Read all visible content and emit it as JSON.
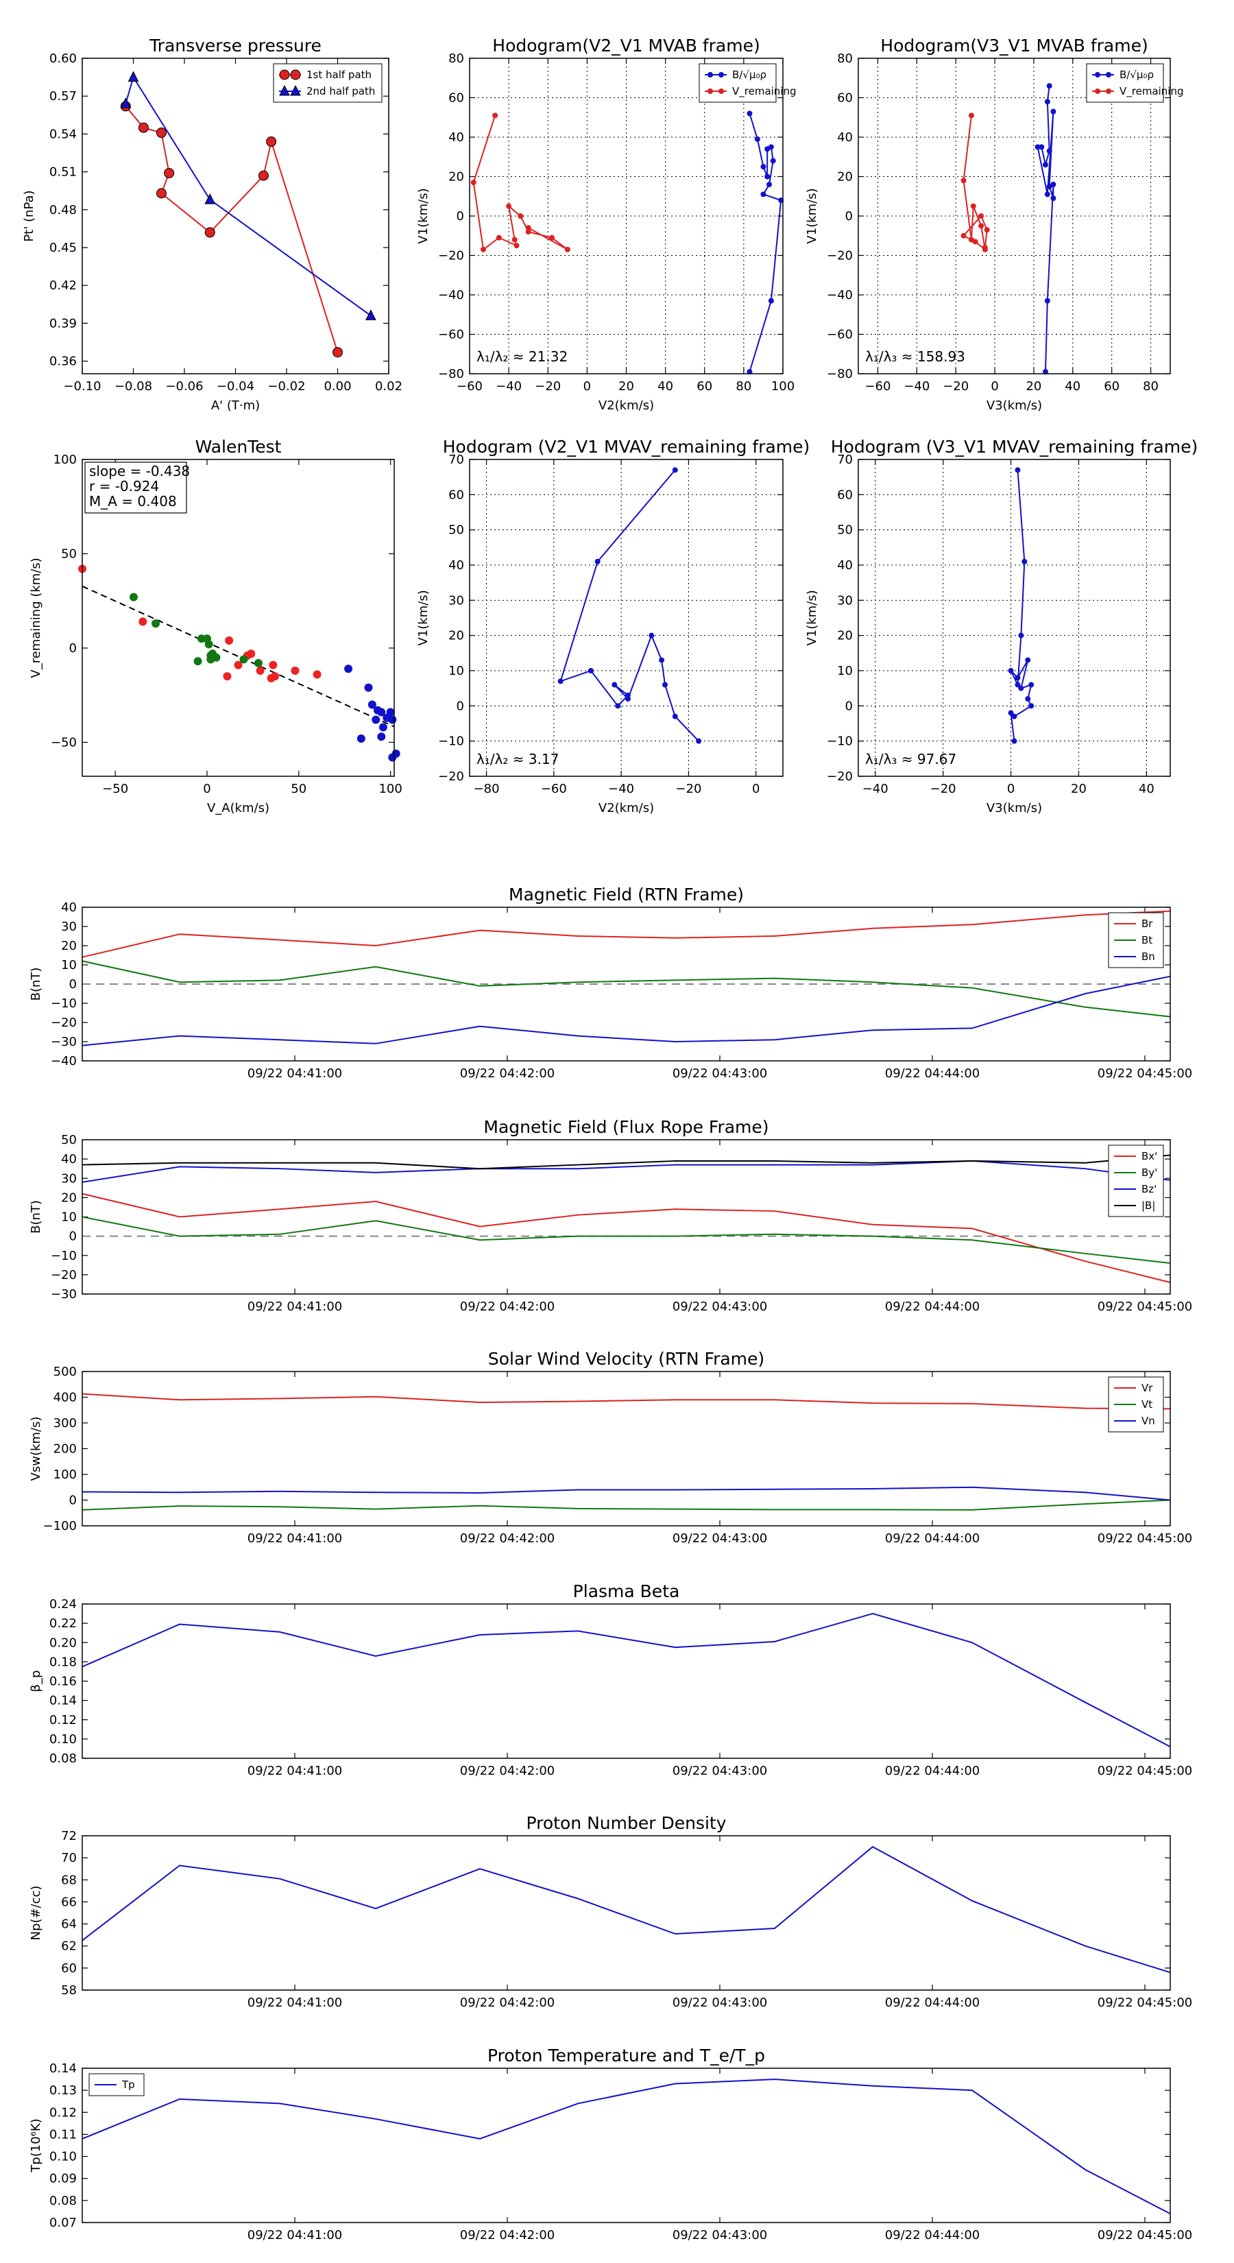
{
  "chart_data": [
    {
      "id": "p1",
      "type": "line",
      "title": "Transverse pressure",
      "xlabel": "A' (T·m)",
      "ylabel": "Pt' (nPa)",
      "xlim": [
        -0.1,
        0.02
      ],
      "ylim": [
        0.35,
        0.6
      ],
      "xticks": [
        -0.1,
        -0.08,
        -0.06,
        -0.04,
        -0.02,
        0.0,
        0.02
      ],
      "xtick_labels": [
        "−0.10",
        "−0.08",
        "−0.06",
        "−0.04",
        "−0.02",
        "0.00",
        "0.02"
      ],
      "yticks": [
        0.36,
        0.39,
        0.42,
        0.45,
        0.48,
        0.51,
        0.54,
        0.57,
        0.6
      ],
      "ytick_labels": [
        "0.36",
        "0.39",
        "0.42",
        "0.45",
        "0.48",
        "0.51",
        "0.54",
        "0.57",
        "0.60"
      ],
      "grid": false,
      "legend": {
        "position": "top-right"
      },
      "series": [
        {
          "name": "1st half path",
          "color": "#dd2222",
          "marker": "circle",
          "x": [
            -0.083,
            -0.076,
            -0.069,
            -0.066,
            -0.069,
            -0.05,
            -0.029,
            -0.026,
            0.0
          ],
          "y": [
            0.562,
            0.545,
            0.541,
            0.509,
            0.493,
            0.462,
            0.507,
            0.534,
            0.367
          ]
        },
        {
          "name": "2nd half path",
          "color": "#1111cc",
          "marker": "triangle",
          "x": [
            -0.083,
            -0.08,
            -0.05,
            0.013
          ],
          "y": [
            0.564,
            0.585,
            0.488,
            0.396
          ]
        }
      ]
    },
    {
      "id": "p2",
      "type": "line",
      "title": "Hodogram(V2_V1 MVAB frame)",
      "xlabel": "V2(km/s)",
      "ylabel": "V1(km/s)",
      "xlim": [
        -60,
        100
      ],
      "ylim": [
        -80,
        80
      ],
      "xticks": [
        -60,
        -40,
        -20,
        0,
        20,
        40,
        60,
        80,
        100
      ],
      "xtick_labels": [
        "−60",
        "−40",
        "−20",
        "0",
        "20",
        "40",
        "60",
        "80",
        "100"
      ],
      "yticks": [
        -80,
        -60,
        -40,
        -20,
        0,
        20,
        40,
        60,
        80
      ],
      "ytick_labels": [
        "−80",
        "−60",
        "−40",
        "−20",
        "0",
        "20",
        "40",
        "60",
        "80"
      ],
      "grid": true,
      "legend": {
        "position": "top-right"
      },
      "annotation": "λ₁/λ₂ ≈ 21.32",
      "series": [
        {
          "name": "B/√μ₀ρ",
          "color": "#1111cc",
          "marker": "dot",
          "x": [
            83,
            87,
            90,
            92,
            92,
            94,
            95,
            93,
            90,
            99,
            94,
            83
          ],
          "y": [
            52,
            39,
            25,
            20,
            34,
            35,
            28,
            16,
            11,
            8,
            -43,
            -79
          ]
        },
        {
          "name": "V_remaining",
          "color": "#dd2222",
          "marker": "dot",
          "x": [
            -47,
            -58,
            -53,
            -45,
            -36,
            -37,
            -40,
            -34,
            -30,
            -18,
            -10,
            -30
          ],
          "y": [
            51,
            17,
            -17,
            -11,
            -15,
            -12,
            5,
            0,
            -8,
            -11,
            -17,
            -6
          ]
        }
      ]
    },
    {
      "id": "p3",
      "type": "line",
      "title": "Hodogram(V3_V1 MVAB frame)",
      "xlabel": "V3(km/s)",
      "ylabel": "V1(km/s)",
      "xlim": [
        -70,
        90
      ],
      "ylim": [
        -80,
        80
      ],
      "xticks": [
        -60,
        -40,
        -20,
        0,
        20,
        40,
        60,
        80
      ],
      "xtick_labels": [
        "−60",
        "−40",
        "−20",
        "0",
        "20",
        "40",
        "60",
        "80"
      ],
      "yticks": [
        -80,
        -60,
        -40,
        -20,
        0,
        20,
        40,
        60,
        80
      ],
      "ytick_labels": [
        "−80",
        "−60",
        "−40",
        "−20",
        "0",
        "20",
        "40",
        "60",
        "80"
      ],
      "grid": true,
      "legend": {
        "position": "top-right"
      },
      "annotation": "λ₁/λ₃ ≈ 158.93",
      "series": [
        {
          "name": "B/√μ₀ρ",
          "color": "#1111cc",
          "marker": "dot",
          "x": [
            28,
            27,
            28,
            26,
            24,
            22,
            27,
            30,
            28,
            30,
            30,
            27,
            26
          ],
          "y": [
            66,
            58,
            33,
            26,
            35,
            35,
            11,
            53,
            15,
            9,
            16,
            -43,
            -79
          ]
        },
        {
          "name": "V_remaining",
          "color": "#dd2222",
          "marker": "dot",
          "x": [
            -12,
            -16,
            -12,
            -11,
            -7,
            -5,
            -10,
            -16,
            -7,
            -4,
            -5
          ],
          "y": [
            51,
            18,
            -12,
            5,
            -5,
            -17,
            -13,
            -10,
            0,
            -7,
            -16
          ]
        }
      ]
    },
    {
      "id": "p4",
      "type": "scatter",
      "title": "WalenTest",
      "xlabel": "V_A(km/s)",
      "ylabel": "V_remaining (km/s)",
      "xlim": [
        -68,
        102
      ],
      "ylim": [
        -68,
        100
      ],
      "xticks": [
        -50,
        0,
        50,
        100
      ],
      "xtick_labels": [
        "−50",
        "0",
        "50",
        "100"
      ],
      "yticks": [
        -50,
        0,
        50,
        100
      ],
      "ytick_labels": [
        "−50",
        "0",
        "50",
        "100"
      ],
      "grid": false,
      "stats": [
        "slope = -0.438",
        "r = -0.924",
        "M_A = 0.408"
      ],
      "fit_line": {
        "slope": -0.438,
        "intercept": 3.0,
        "color": "#000000",
        "style": "dashed"
      },
      "series": [
        {
          "name": "red",
          "color": "#ee2222",
          "x": [
            -68,
            -35,
            12,
            11,
            17,
            22,
            24,
            29,
            35,
            37,
            36,
            48,
            60
          ],
          "y": [
            42,
            14,
            4,
            -15,
            -9,
            -4,
            -3,
            -12,
            -16,
            -15,
            -9,
            -12,
            -14
          ]
        },
        {
          "name": "green",
          "color": "#117711",
          "x": [
            -40,
            -28,
            -5,
            -3,
            0,
            1,
            2,
            2,
            3,
            5,
            20,
            28
          ],
          "y": [
            27,
            13,
            -7,
            5,
            5,
            2,
            -4,
            -6,
            -3,
            -5,
            -6,
            -8
          ]
        },
        {
          "name": "blue",
          "color": "#1111cc",
          "x": [
            77,
            84,
            88,
            90,
            93,
            92,
            95,
            96,
            98,
            100,
            101,
            101,
            103,
            95
          ],
          "y": [
            -11,
            -48,
            -21,
            -30,
            -33,
            -38,
            -34,
            -42,
            -37,
            -34,
            -38,
            -58,
            -56,
            -47
          ]
        }
      ]
    },
    {
      "id": "p5",
      "type": "line",
      "title": "Hodogram (V2_V1 MVAV_remaining frame)",
      "xlabel": "V2(km/s)",
      "ylabel": "V1(km/s)",
      "xlim": [
        -85,
        8
      ],
      "ylim": [
        -20,
        70
      ],
      "xticks": [
        -80,
        -60,
        -40,
        -20,
        0
      ],
      "xtick_labels": [
        "−80",
        "−60",
        "−40",
        "−20",
        "0"
      ],
      "yticks": [
        -20,
        -10,
        0,
        10,
        20,
        30,
        40,
        50,
        60,
        70
      ],
      "ytick_labels": [
        "−20",
        "−10",
        "0",
        "10",
        "20",
        "30",
        "40",
        "50",
        "60",
        "70"
      ],
      "grid": true,
      "annotation": "λ₁/λ₂ ≈ 3.17",
      "series": [
        {
          "name": "hodogram",
          "color": "#1111cc",
          "marker": "dot",
          "x": [
            -24,
            -47,
            -58,
            -49,
            -41,
            -38,
            -42,
            -38,
            -31,
            -28,
            -27,
            -24,
            -17
          ],
          "y": [
            67,
            41,
            7,
            10,
            0,
            3,
            6,
            2,
            20,
            13,
            6,
            -3,
            -10
          ]
        }
      ]
    },
    {
      "id": "p6",
      "type": "line",
      "title": "Hodogram (V3_V1 MVAV_remaining frame)",
      "xlabel": "V3(km/s)",
      "ylabel": "V1(km/s)",
      "xlim": [
        -45,
        47
      ],
      "ylim": [
        -20,
        70
      ],
      "xticks": [
        -40,
        -20,
        0,
        20,
        40
      ],
      "xtick_labels": [
        "−40",
        "−20",
        "0",
        "20",
        "40"
      ],
      "yticks": [
        -20,
        -10,
        0,
        10,
        20,
        30,
        40,
        50,
        60,
        70
      ],
      "ytick_labels": [
        "−20",
        "−10",
        "0",
        "10",
        "20",
        "30",
        "40",
        "50",
        "60",
        "70"
      ],
      "grid": true,
      "annotation": "λ₁/λ₃ ≈ 97.67",
      "series": [
        {
          "name": "hodogram",
          "color": "#1111cc",
          "marker": "dot",
          "x": [
            2,
            4,
            3,
            2,
            0,
            2,
            5,
            3,
            6,
            5,
            6,
            1,
            0,
            1
          ],
          "y": [
            67,
            41,
            20,
            6,
            10,
            8,
            13,
            5,
            6,
            2,
            0,
            -3,
            -2,
            -10
          ]
        }
      ]
    },
    {
      "id": "ts1",
      "type": "line",
      "title": "Magnetic Field (RTN Frame)",
      "ylabel": "B(nT)",
      "ylim": [
        -40,
        40
      ],
      "yticks": [
        -40,
        -30,
        -20,
        -10,
        0,
        10,
        20,
        30,
        40
      ],
      "ytick_labels": [
        "−40",
        "−30",
        "−20",
        "−10",
        "0",
        "10",
        "20",
        "30",
        "40"
      ],
      "x_labels": [
        "09/22 04:41:00",
        "09/22 04:42:00",
        "09/22 04:43:00",
        "09/22 04:44:00",
        "09/22 04:45:00"
      ],
      "zero_line": true,
      "legend": {
        "position": "top-right"
      },
      "series": [
        {
          "name": "Br",
          "color": "#dd2222",
          "values": [
            14,
            26,
            23,
            20,
            28,
            25,
            24,
            25,
            29,
            31,
            36,
            38
          ]
        },
        {
          "name": "Bt",
          "color": "#117711",
          "values": [
            12,
            1,
            2,
            9,
            -1,
            1,
            2,
            3,
            1,
            -2,
            -12,
            -17
          ]
        },
        {
          "name": "Bn",
          "color": "#1111cc",
          "values": [
            -32,
            -27,
            -29,
            -31,
            -22,
            -27,
            -30,
            -29,
            -24,
            -23,
            -5,
            4
          ]
        }
      ]
    },
    {
      "id": "ts2",
      "type": "line",
      "title": "Magnetic Field (Flux Rope Frame)",
      "ylabel": "B(nT)",
      "ylim": [
        -30,
        50
      ],
      "yticks": [
        -30,
        -20,
        -10,
        0,
        10,
        20,
        30,
        40,
        50
      ],
      "ytick_labels": [
        "−30",
        "−20",
        "−10",
        "0",
        "10",
        "20",
        "30",
        "40",
        "50"
      ],
      "x_labels": [
        "09/22 04:41:00",
        "09/22 04:42:00",
        "09/22 04:43:00",
        "09/22 04:44:00",
        "09/22 04:45:00"
      ],
      "zero_line": true,
      "legend": {
        "position": "top-right"
      },
      "series": [
        {
          "name": "Bx'",
          "color": "#dd2222",
          "values": [
            22,
            10,
            14,
            18,
            5,
            11,
            14,
            13,
            6,
            4,
            -13,
            -24
          ]
        },
        {
          "name": "By'",
          "color": "#117711",
          "values": [
            10,
            0,
            1,
            8,
            -2,
            0,
            0,
            1,
            0,
            -2,
            -9,
            -14
          ]
        },
        {
          "name": "Bz'",
          "color": "#1111cc",
          "values": [
            28,
            36,
            35,
            33,
            35,
            35,
            37,
            37,
            37,
            39,
            35,
            29
          ]
        },
        {
          "name": "|B|",
          "color": "#000000",
          "values": [
            37,
            38,
            38,
            38,
            35,
            37,
            39,
            39,
            38,
            39,
            38,
            42
          ]
        }
      ]
    },
    {
      "id": "ts3",
      "type": "line",
      "title": "Solar Wind Velocity (RTN Frame)",
      "ylabel": "Vsw(km/s)",
      "ylim": [
        -100,
        500
      ],
      "yticks": [
        -100,
        0,
        100,
        200,
        300,
        400,
        500
      ],
      "ytick_labels": [
        "−100",
        "0",
        "100",
        "200",
        "300",
        "400",
        "500"
      ],
      "x_labels": [
        "09/22 04:41:00",
        "09/22 04:42:00",
        "09/22 04:43:00",
        "09/22 04:44:00",
        "09/22 04:45:00"
      ],
      "legend": {
        "position": "top-right"
      },
      "series": [
        {
          "name": "Vr",
          "color": "#dd2222",
          "values": [
            413,
            390,
            395,
            402,
            380,
            384,
            390,
            390,
            377,
            375,
            357,
            355
          ]
        },
        {
          "name": "Vt",
          "color": "#117711",
          "values": [
            -38,
            -23,
            -26,
            -35,
            -22,
            -33,
            -35,
            -37,
            -37,
            -38,
            -15,
            0
          ]
        },
        {
          "name": "Vn",
          "color": "#1111cc",
          "values": [
            32,
            30,
            34,
            30,
            28,
            40,
            40,
            42,
            44,
            50,
            30,
            0
          ]
        }
      ]
    },
    {
      "id": "ts4",
      "type": "line",
      "title": "Plasma Beta",
      "ylabel": "β_p",
      "ylim": [
        0.08,
        0.24
      ],
      "yticks": [
        0.08,
        0.1,
        0.12,
        0.14,
        0.16,
        0.18,
        0.2,
        0.22,
        0.24
      ],
      "ytick_labels": [
        "0.08",
        "0.10",
        "0.12",
        "0.14",
        "0.16",
        "0.18",
        "0.20",
        "0.22",
        "0.24"
      ],
      "x_labels": [
        "09/22 04:41:00",
        "09/22 04:42:00",
        "09/22 04:43:00",
        "09/22 04:44:00",
        "09/22 04:45:00"
      ],
      "series": [
        {
          "name": "beta",
          "color": "#1111cc",
          "values": [
            0.175,
            0.219,
            0.211,
            0.186,
            0.208,
            0.212,
            0.195,
            0.201,
            0.23,
            0.2,
            0.138,
            0.092
          ]
        }
      ]
    },
    {
      "id": "ts5",
      "type": "line",
      "title": "Proton Number Density",
      "ylabel": "Np(#/cc)",
      "ylim": [
        58,
        72
      ],
      "yticks": [
        58,
        60,
        62,
        64,
        66,
        68,
        70,
        72
      ],
      "ytick_labels": [
        "58",
        "60",
        "62",
        "64",
        "66",
        "68",
        "70",
        "72"
      ],
      "x_labels": [
        "09/22 04:41:00",
        "09/22 04:42:00",
        "09/22 04:43:00",
        "09/22 04:44:00",
        "09/22 04:45:00"
      ],
      "series": [
        {
          "name": "Np",
          "color": "#1111cc",
          "values": [
            62.5,
            69.3,
            68.1,
            65.4,
            69.0,
            66.3,
            63.1,
            63.6,
            71.0,
            66.1,
            62.0,
            59.6
          ]
        }
      ]
    },
    {
      "id": "ts6",
      "type": "line",
      "title": "Proton Temperature and T_e/T_p",
      "ylabel": "Tp(10⁶K)",
      "ylim": [
        0.07,
        0.14
      ],
      "yticks": [
        0.07,
        0.08,
        0.09,
        0.1,
        0.11,
        0.12,
        0.13,
        0.14
      ],
      "ytick_labels": [
        "0.07",
        "0.08",
        "0.09",
        "0.10",
        "0.11",
        "0.12",
        "0.13",
        "0.14"
      ],
      "x_labels": [
        "09/22 04:41:00",
        "09/22 04:42:00",
        "09/22 04:43:00",
        "09/22 04:44:00",
        "09/22 04:45:00"
      ],
      "legend": {
        "position": "top-left"
      },
      "series": [
        {
          "name": "Tp",
          "color": "#1111cc",
          "values": [
            0.108,
            0.126,
            0.124,
            0.117,
            0.108,
            0.124,
            0.133,
            0.135,
            0.132,
            0.13,
            0.094,
            0.074
          ]
        }
      ]
    }
  ]
}
